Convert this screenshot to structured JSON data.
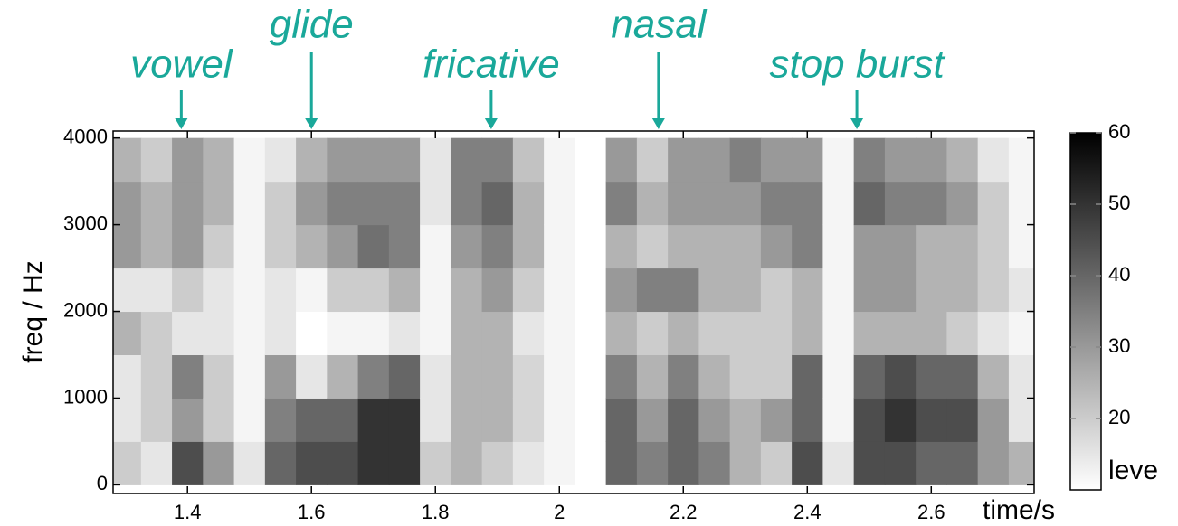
{
  "chart_data": {
    "type": "heatmap",
    "xlabel": "time/s",
    "ylabel": "freq / Hz",
    "xlim": [
      1.28,
      2.766
    ],
    "ylim": [
      -100,
      4080
    ],
    "xticks": [
      1.4,
      1.6,
      1.8,
      2,
      2.2,
      2.4,
      2.6
    ],
    "yticks": [
      0,
      1000,
      2000,
      3000,
      4000
    ],
    "x": [
      1.3,
      1.35,
      1.4,
      1.45,
      1.5,
      1.55,
      1.6,
      1.65,
      1.7,
      1.75,
      1.8,
      1.85,
      1.9,
      1.95,
      2.0,
      2.05,
      2.1,
      2.15,
      2.2,
      2.25,
      2.3,
      2.35,
      2.4,
      2.45,
      2.5,
      2.55,
      2.6,
      2.65,
      2.7,
      2.75
    ],
    "y": [
      250,
      750,
      1250,
      1750,
      2250,
      2750,
      3250,
      3750
    ],
    "z": [
      [
        20,
        15,
        15,
        25,
        15,
        30,
        30,
        25
      ],
      [
        15,
        20,
        20,
        20,
        15,
        25,
        25,
        20
      ],
      [
        45,
        30,
        35,
        15,
        20,
        30,
        30,
        30
      ],
      [
        30,
        20,
        20,
        15,
        15,
        20,
        25,
        25
      ],
      [
        15,
        12,
        12,
        12,
        12,
        12,
        12,
        12
      ],
      [
        40,
        35,
        30,
        15,
        15,
        20,
        20,
        15
      ],
      [
        45,
        40,
        15,
        10,
        12,
        25,
        30,
        25
      ],
      [
        45,
        40,
        25,
        12,
        20,
        30,
        35,
        30
      ],
      [
        50,
        50,
        35,
        12,
        20,
        38,
        35,
        30
      ],
      [
        50,
        50,
        40,
        15,
        25,
        35,
        35,
        30
      ],
      [
        20,
        15,
        15,
        12,
        12,
        12,
        15,
        15
      ],
      [
        25,
        25,
        25,
        25,
        25,
        30,
        35,
        35
      ],
      [
        20,
        25,
        25,
        25,
        30,
        35,
        40,
        35
      ],
      [
        15,
        18,
        18,
        15,
        20,
        25,
        25,
        22
      ],
      [
        12,
        12,
        12,
        12,
        12,
        12,
        12,
        12
      ],
      [
        10,
        10,
        10,
        10,
        10,
        10,
        10,
        10
      ],
      [
        40,
        40,
        35,
        25,
        30,
        25,
        35,
        30
      ],
      [
        35,
        30,
        25,
        20,
        35,
        20,
        25,
        20
      ],
      [
        40,
        40,
        35,
        25,
        35,
        25,
        30,
        30
      ],
      [
        35,
        30,
        25,
        20,
        25,
        25,
        30,
        30
      ],
      [
        25,
        25,
        20,
        20,
        25,
        25,
        30,
        35
      ],
      [
        20,
        30,
        20,
        20,
        20,
        30,
        35,
        30
      ],
      [
        45,
        40,
        40,
        25,
        25,
        35,
        35,
        30
      ],
      [
        15,
        12,
        12,
        12,
        12,
        12,
        12,
        12
      ],
      [
        45,
        45,
        40,
        25,
        30,
        30,
        40,
        35
      ],
      [
        45,
        50,
        45,
        25,
        30,
        30,
        35,
        30
      ],
      [
        40,
        45,
        40,
        25,
        25,
        25,
        35,
        30
      ],
      [
        40,
        45,
        40,
        20,
        25,
        25,
        30,
        25
      ],
      [
        30,
        30,
        25,
        15,
        20,
        20,
        20,
        15
      ],
      [
        25,
        15,
        15,
        12,
        15,
        12,
        12,
        12
      ]
    ],
    "colormap": [
      "#ffffff",
      "#000000"
    ],
    "clim": [
      10,
      60
    ],
    "colorbar_ticks": [
      20,
      30,
      40,
      50,
      60
    ],
    "colorbar_label": "leve",
    "annotation_color": "#1aa89a",
    "annotations": [
      {
        "text": "vowel",
        "x": 1.39
      },
      {
        "text": "glide",
        "x": 1.6
      },
      {
        "text": "fricative",
        "x": 1.89
      },
      {
        "text": "nasal",
        "x": 2.16
      },
      {
        "text": "stop burst",
        "x": 2.48
      }
    ]
  }
}
